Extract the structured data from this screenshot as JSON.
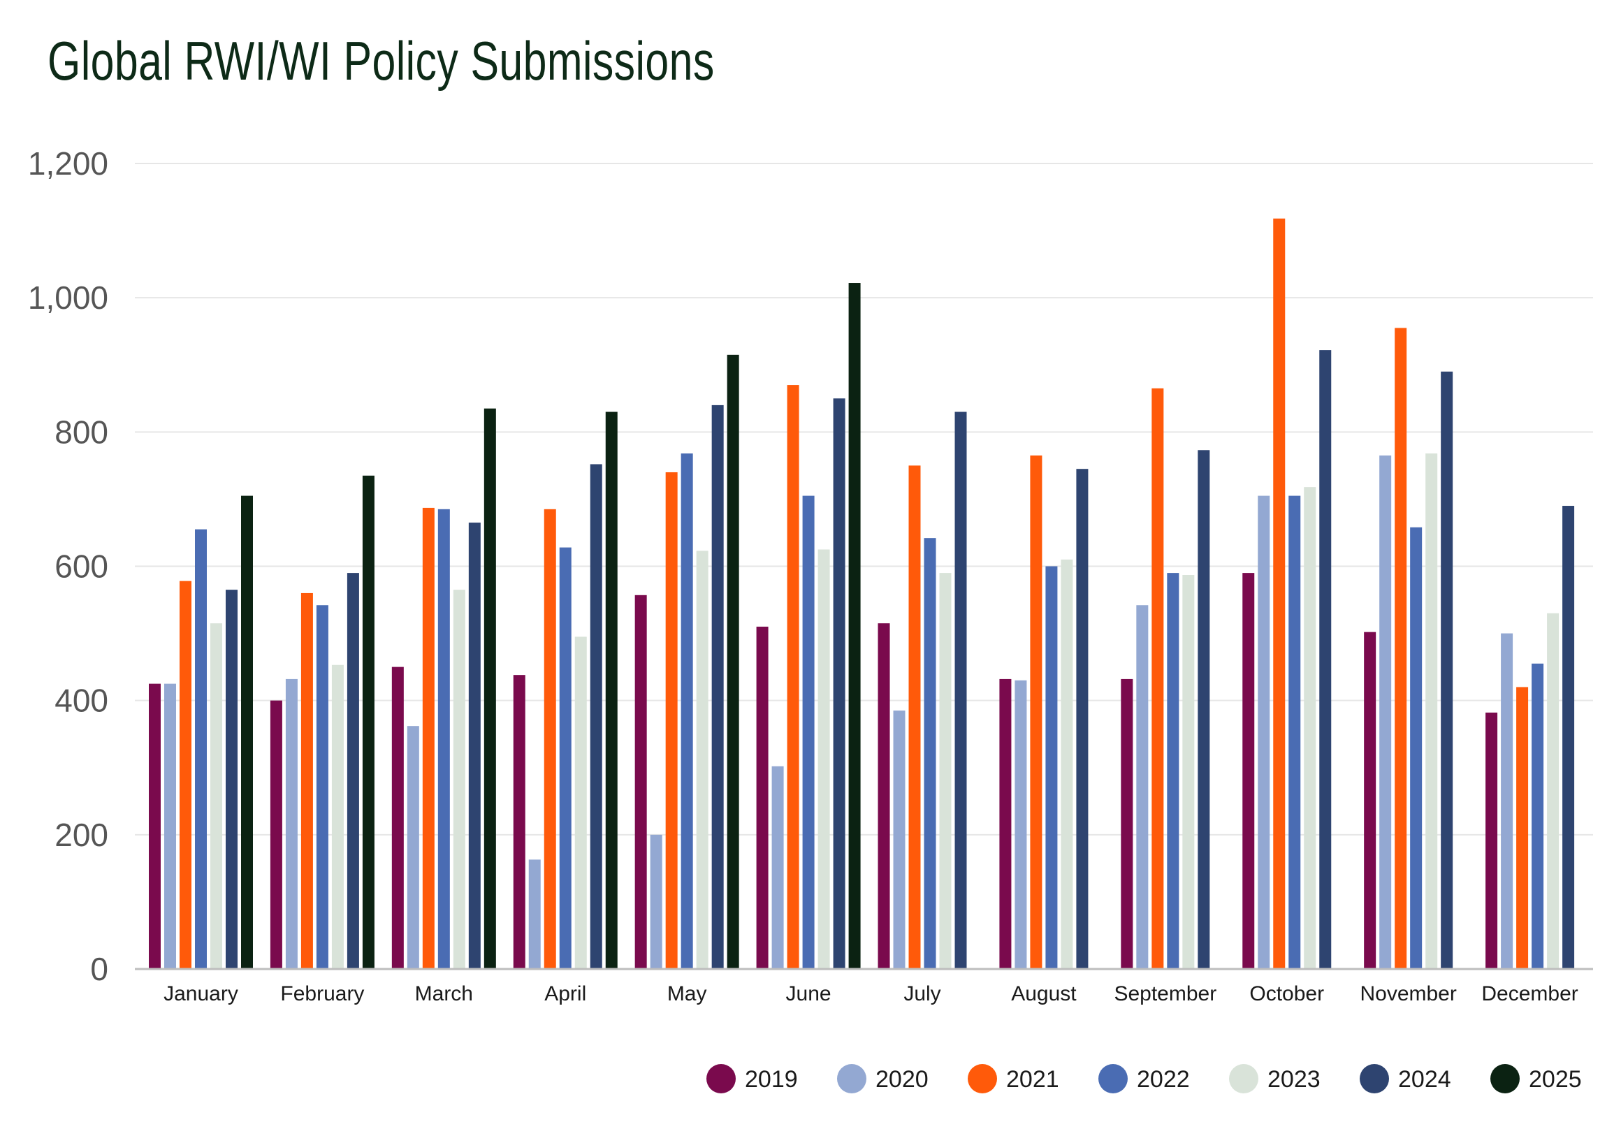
{
  "chart_data": {
    "type": "bar",
    "title": "Global RWI/WI Policy Submissions",
    "xlabel": "",
    "ylabel": "",
    "ylim": [
      0,
      1200
    ],
    "yticks": [
      0,
      200,
      400,
      600,
      800,
      1000,
      1200
    ],
    "ytick_labels": [
      "0",
      "200",
      "400",
      "600",
      "800",
      "1,000",
      "1,200"
    ],
    "grid": true,
    "legend_position": "bottom-right",
    "categories": [
      "January",
      "February",
      "March",
      "April",
      "May",
      "June",
      "July",
      "August",
      "September",
      "October",
      "November",
      "December"
    ],
    "series": [
      {
        "name": "2019",
        "color": "#7a0a4d",
        "values": [
          425,
          400,
          450,
          438,
          557,
          510,
          515,
          432,
          432,
          590,
          502,
          382
        ]
      },
      {
        "name": "2020",
        "color": "#93a8d2",
        "values": [
          425,
          432,
          362,
          163,
          200,
          302,
          385,
          430,
          542,
          705,
          765,
          500
        ]
      },
      {
        "name": "2021",
        "color": "#ff5a0a",
        "values": [
          578,
          560,
          687,
          685,
          740,
          870,
          750,
          765,
          865,
          1118,
          955,
          420
        ]
      },
      {
        "name": "2022",
        "color": "#4a6cb3",
        "values": [
          655,
          542,
          685,
          628,
          768,
          705,
          642,
          600,
          590,
          705,
          658,
          455
        ]
      },
      {
        "name": "2023",
        "color": "#d9e3d9",
        "values": [
          515,
          453,
          565,
          495,
          623,
          625,
          590,
          610,
          587,
          718,
          768,
          530
        ]
      },
      {
        "name": "2024",
        "color": "#2e4470",
        "values": [
          565,
          590,
          665,
          752,
          840,
          850,
          830,
          745,
          773,
          922,
          890,
          690
        ]
      },
      {
        "name": "2025",
        "color": "#0b2212",
        "values": [
          705,
          735,
          835,
          830,
          915,
          1022,
          null,
          null,
          null,
          null,
          null,
          null
        ]
      }
    ]
  }
}
